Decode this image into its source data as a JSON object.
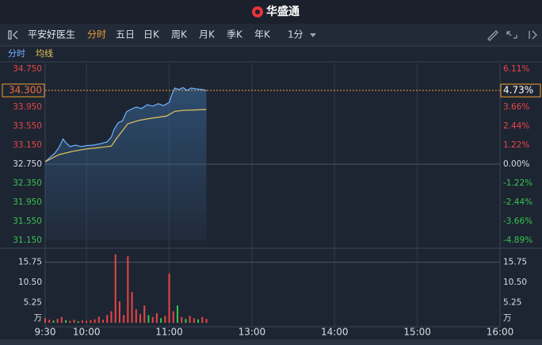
{
  "header": {
    "brand": "华盛通"
  },
  "toolbar": {
    "stock": "平安好医生",
    "tabs": [
      "分时",
      "五日",
      "日K",
      "周K",
      "月K",
      "季K",
      "年K"
    ],
    "period": "1分"
  },
  "chart_data": [
    {
      "type": "line",
      "xlim": [
        0,
        330
      ],
      "ylim": [
        31.15,
        34.75
      ],
      "yticks": [
        {
          "value": 34.75,
          "label": "34.750"
        },
        {
          "value": 33.95,
          "label": "33.950"
        },
        {
          "value": 33.55,
          "label": "33.550"
        },
        {
          "value": 33.15,
          "label": "33.150"
        },
        {
          "value": 32.75,
          "label": "32.750"
        },
        {
          "value": 32.35,
          "label": "32.350"
        },
        {
          "value": 31.95,
          "label": "31.950"
        },
        {
          "value": 31.55,
          "label": "31.550"
        },
        {
          "value": 31.15,
          "label": "31.150"
        }
      ],
      "y2lim": [
        -4.89,
        6.11
      ],
      "y2ticks": [
        {
          "value": 6.11,
          "label": "6.11%"
        },
        {
          "value": 3.66,
          "label": "3.66%"
        },
        {
          "value": 2.44,
          "label": "2.44%"
        },
        {
          "value": 1.22,
          "label": "1.22%"
        },
        {
          "value": 0,
          "label": "0.00%"
        },
        {
          "value": -1.22,
          "label": "-1.22%"
        },
        {
          "value": -2.44,
          "label": "-2.44%"
        },
        {
          "value": -3.66,
          "label": "-3.66%"
        },
        {
          "value": -4.89,
          "label": "-4.89%"
        }
      ],
      "up_color": "#e84545",
      "down_color": "#35c450",
      "flat_color": "#d8dde6",
      "last": {
        "value": 34.3,
        "label": "34.300"
      },
      "last_pct": {
        "value": 4.73,
        "label": "4.73%"
      },
      "series": [
        {
          "name": "分时",
          "color": "#6fb3ff",
          "x": [
            0,
            3,
            7,
            10,
            13,
            15,
            18,
            22,
            26,
            30,
            35,
            40,
            45,
            48,
            50,
            53,
            56,
            59,
            62,
            66,
            70,
            74,
            78,
            82,
            86,
            90,
            92,
            94,
            97,
            100,
            103,
            106,
            110,
            114,
            117
          ],
          "values": [
            32.8,
            32.88,
            32.98,
            33.1,
            33.28,
            33.2,
            33.12,
            33.15,
            33.12,
            33.14,
            33.15,
            33.18,
            33.22,
            33.32,
            33.48,
            33.62,
            33.66,
            33.85,
            33.9,
            33.95,
            33.92,
            34.0,
            33.97,
            34.02,
            33.98,
            34.05,
            34.22,
            34.35,
            34.32,
            34.36,
            34.3,
            34.35,
            34.33,
            34.32,
            34.3
          ]
        },
        {
          "name": "均线",
          "color": "#e8c45a",
          "x": [
            0,
            10,
            20,
            30,
            40,
            48,
            52,
            56,
            60,
            68,
            76,
            88,
            94,
            100,
            117
          ],
          "values": [
            32.8,
            32.95,
            33.02,
            33.07,
            33.1,
            33.13,
            33.3,
            33.45,
            33.6,
            33.67,
            33.71,
            33.76,
            33.86,
            33.88,
            33.9
          ]
        }
      ]
    },
    {
      "type": "bar",
      "xlim": [
        0,
        330
      ],
      "xticks": [
        {
          "value": 0,
          "label": "9:30"
        },
        {
          "value": 30,
          "label": "10:00"
        },
        {
          "value": 90,
          "label": "11:00"
        },
        {
          "value": 150,
          "label": "13:00"
        },
        {
          "value": 210,
          "label": "14:00"
        },
        {
          "value": 270,
          "label": "15:00"
        },
        {
          "value": 330,
          "label": "16:00"
        }
      ],
      "ylim": [
        0,
        20
      ],
      "yticks": [
        15.75,
        {
          "value": 10.5,
          "label": "10.50"
        },
        5.25
      ],
      "unit": "万",
      "x": [
        0,
        3,
        6,
        9,
        12,
        15,
        18,
        21,
        24,
        27,
        30,
        33,
        36,
        39,
        42,
        45,
        48,
        51,
        54,
        57,
        60,
        63,
        66,
        69,
        72,
        75,
        78,
        81,
        84,
        87,
        90,
        93,
        96,
        99,
        102,
        105,
        108,
        111,
        114,
        117
      ],
      "values": [
        1.2,
        0.8,
        0.6,
        1.0,
        1.5,
        0.7,
        0.5,
        0.8,
        0.4,
        0.6,
        0.5,
        0.7,
        0.9,
        1.6,
        0.8,
        2.0,
        3.0,
        17.8,
        5.6,
        2.0,
        17.3,
        8.0,
        3.5,
        2.2,
        4.5,
        2.0,
        1.5,
        2.5,
        1.2,
        1.8,
        12.8,
        3.0,
        4.5,
        1.5,
        1.0,
        1.8,
        1.2,
        0.9,
        1.5,
        1.0
      ],
      "colors": [
        "#e84545",
        "#e84545",
        "#35c450",
        "#e84545",
        "#e84545",
        "#35c450",
        "#e84545",
        "#e84545",
        "#35c450",
        "#e84545",
        "#e84545",
        "#e84545",
        "#e84545",
        "#e84545",
        "#e84545",
        "#e84545",
        "#e84545",
        "#e84545",
        "#e84545",
        "#e84545",
        "#e84545",
        "#e84545",
        "#e84545",
        "#e84545",
        "#e84545",
        "#35c450",
        "#e84545",
        "#e84545",
        "#35c450",
        "#e84545",
        "#e84545",
        "#e84545",
        "#35c450",
        "#e84545",
        "#35c450",
        "#e84545",
        "#e84545",
        "#35c450",
        "#e84545",
        "#e84545"
      ]
    }
  ]
}
